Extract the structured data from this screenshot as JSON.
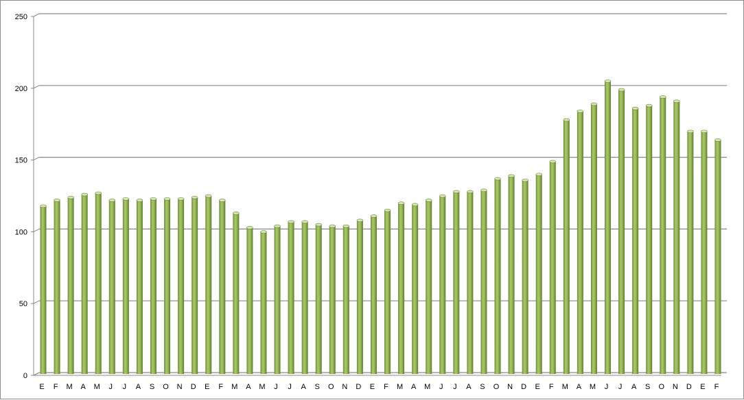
{
  "chart_data": {
    "type": "bar",
    "title": "",
    "xlabel": "",
    "ylabel": "",
    "ylim": [
      0,
      250
    ],
    "yticks": [
      0,
      50,
      100,
      150,
      200,
      250
    ],
    "grid": true,
    "legend": "none",
    "bar_color": "#9bbb59",
    "categories": [
      "E",
      "F",
      "M",
      "A",
      "M",
      "J",
      "J",
      "A",
      "S",
      "O",
      "N",
      "D",
      "E",
      "F",
      "M",
      "A",
      "M",
      "J",
      "J",
      "A",
      "S",
      "O",
      "N",
      "D",
      "E",
      "F",
      "M",
      "A",
      "M",
      "J",
      "J",
      "A",
      "S",
      "O",
      "N",
      "D",
      "E",
      "F",
      "M",
      "A",
      "M",
      "J",
      "J",
      "A",
      "S",
      "O",
      "N",
      "D",
      "E",
      "F"
    ],
    "values": [
      116,
      120,
      122,
      124,
      125,
      120,
      121,
      120,
      121,
      121,
      121,
      122,
      123,
      120,
      111,
      101,
      98,
      102,
      105,
      105,
      103,
      102,
      102,
      106,
      109,
      113,
      118,
      117,
      120,
      123,
      126,
      126,
      127,
      135,
      137,
      134,
      138,
      147,
      176,
      182,
      187,
      203,
      197,
      184,
      186,
      192,
      189,
      168,
      168,
      162
    ]
  }
}
